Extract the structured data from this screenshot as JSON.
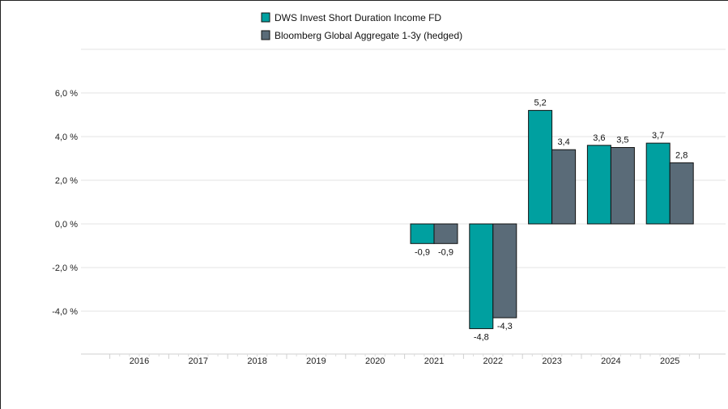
{
  "chart_data": {
    "type": "bar",
    "categories": [
      "2016",
      "2017",
      "2018",
      "2019",
      "2020",
      "2021",
      "2022",
      "2023",
      "2024",
      "2025"
    ],
    "series": [
      {
        "name": "DWS Invest Short Duration Income FD",
        "values": [
          null,
          null,
          null,
          null,
          null,
          -0.9,
          -4.8,
          5.2,
          3.6,
          3.7
        ],
        "labels": [
          "",
          "",
          "",
          "",
          "",
          "-0,9",
          "-4,8",
          "5,2",
          "3,6",
          "3,7"
        ]
      },
      {
        "name": "Bloomberg Global Aggregate 1-3y (hedged)",
        "values": [
          null,
          null,
          null,
          null,
          null,
          -0.9,
          -4.3,
          3.4,
          3.5,
          2.8
        ],
        "labels": [
          "",
          "",
          "",
          "",
          "",
          "-0,9",
          "-4,3",
          "3,4",
          "3,5",
          "2,8"
        ]
      }
    ],
    "y_ticks": [
      {
        "value": 6,
        "label": "6,0 %"
      },
      {
        "value": 4,
        "label": "4,0 %"
      },
      {
        "value": 2,
        "label": "2,0 %"
      },
      {
        "value": 0,
        "label": "0,0 %"
      },
      {
        "value": -2,
        "label": "-2,0 %"
      },
      {
        "value": -4,
        "label": "-4,0 %"
      }
    ],
    "ylim": [
      -6,
      8
    ],
    "grid": true,
    "legend_position": "top-center",
    "colors": [
      "#00a0a0",
      "#5a6b78"
    ]
  }
}
